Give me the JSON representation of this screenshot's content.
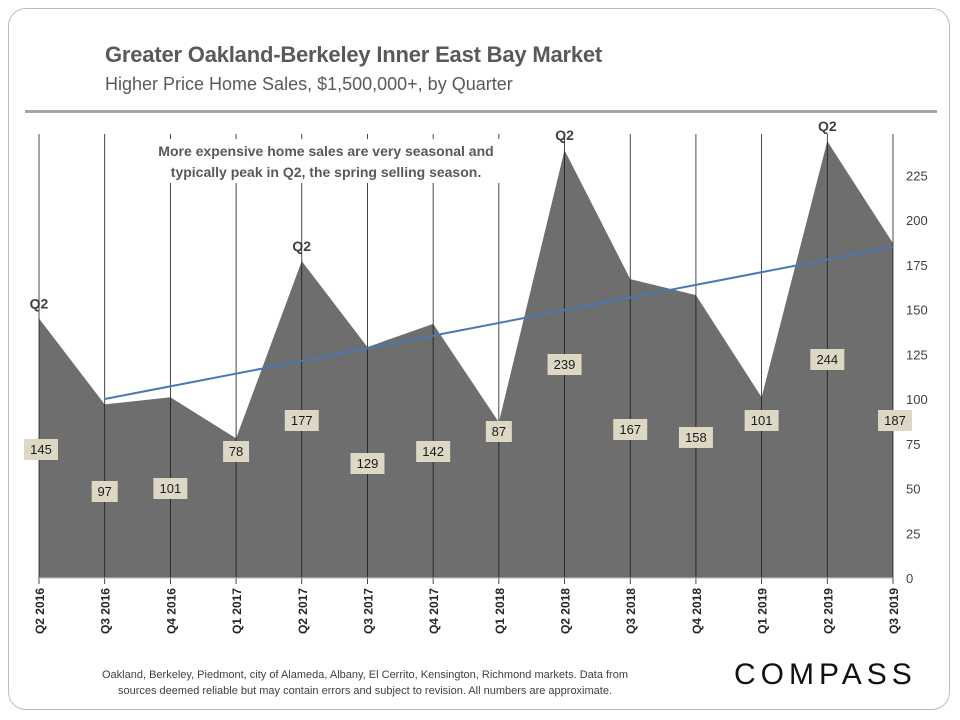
{
  "header": {
    "title": "Greater Oakland-Berkeley Inner East Bay Market",
    "subtitle": "Higher Price Home Sales, $1,500,000+, by Quarter"
  },
  "chart_data": {
    "type": "area",
    "categories": [
      "Q2 2016",
      "Q3 2016",
      "Q4 2016",
      "Q1 2017",
      "Q2 2017",
      "Q3 2017",
      "Q4 2017",
      "Q1 2018",
      "Q2 2018",
      "Q3 2018",
      "Q4 2018",
      "Q1 2019",
      "Q2 2019",
      "Q3 2019"
    ],
    "series": [
      {
        "values": [
          145,
          97,
          101,
          78,
          177,
          129,
          142,
          87,
          239,
          167,
          158,
          101,
          244,
          187
        ]
      }
    ],
    "trendline": {
      "from": {
        "x": "Q3 2016",
        "y": 100
      },
      "to": {
        "x": "Q3 2019",
        "y": 185
      }
    },
    "ylim": [
      0,
      250
    ],
    "yticks": [
      0,
      25,
      50,
      75,
      100,
      125,
      150,
      175,
      200,
      225
    ],
    "y_axis_side": "right",
    "peak_labels": [
      {
        "category": "Q2 2016",
        "text": "Q2"
      },
      {
        "category": "Q2 2017",
        "text": "Q2"
      },
      {
        "category": "Q2 2018",
        "text": "Q2"
      },
      {
        "category": "Q2 2019",
        "text": "Q2"
      }
    ],
    "annotation": "More expensive home sales are very seasonal and typically peak in Q2, the spring selling season.",
    "colors": {
      "area": "#6e6e6e",
      "trendline": "#4a78b4",
      "label_bg": "#ddd8c4"
    }
  },
  "footer": {
    "note_line1": "Oakland, Berkeley, Piedmont, city of Alameda, Albany, El Cerrito, Kensington, Richmond markets. Data from",
    "note_line2": "sources deemed reliable but may contain errors and subject to revision.  All numbers are approximate.",
    "logo": "COMPASS"
  }
}
